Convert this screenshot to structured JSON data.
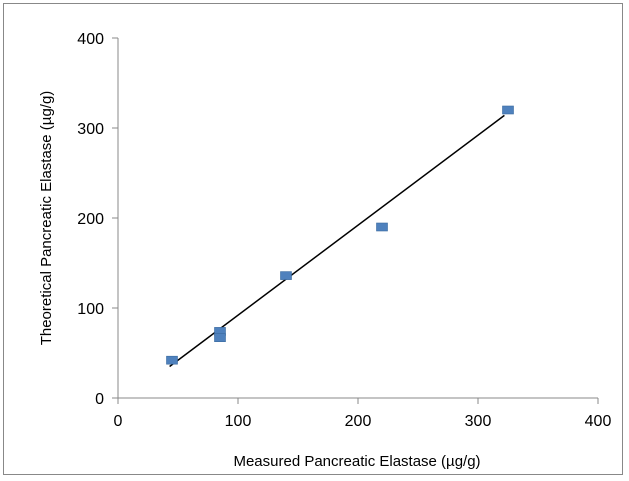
{
  "chart_data": {
    "type": "scatter",
    "xlabel": "Measured Pancreatic Elastase (µg/g)",
    "ylabel": "Theoretical Pancreatic Elastase (µg/g)",
    "xlim": [
      0,
      400
    ],
    "ylim": [
      0,
      400
    ],
    "xticks": [
      0,
      100,
      200,
      300,
      400
    ],
    "yticks": [
      0,
      100,
      200,
      300,
      400
    ],
    "grid": false,
    "legend": "none",
    "series": [
      {
        "marker": "square",
        "color": "#4F81BD",
        "points": [
          {
            "x": 45,
            "y": 42
          },
          {
            "x": 85,
            "y": 74
          },
          {
            "x": 85,
            "y": 67
          },
          {
            "x": 140,
            "y": 136
          },
          {
            "x": 220,
            "y": 190
          },
          {
            "x": 325,
            "y": 320
          }
        ]
      }
    ],
    "trendline": {
      "type": "linear",
      "color": "#000000",
      "from": {
        "x": 43,
        "y": 35
      },
      "to": {
        "x": 322,
        "y": 314
      }
    }
  }
}
